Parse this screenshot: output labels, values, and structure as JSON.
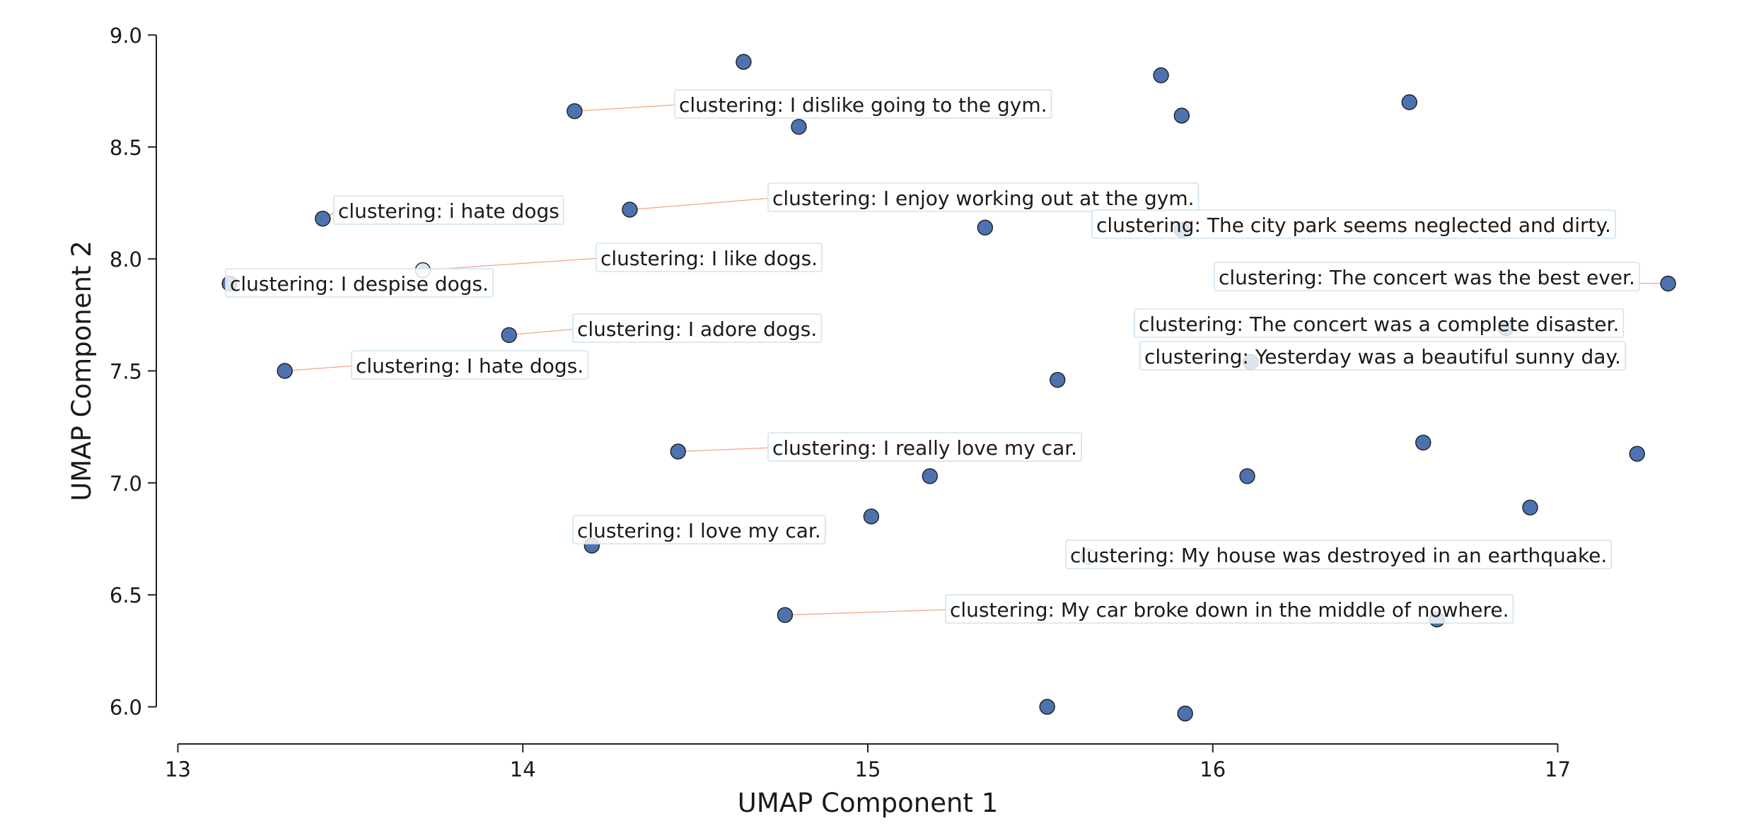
{
  "chart_data": {
    "type": "scatter",
    "title": "",
    "xlabel": "UMAP Component 1",
    "ylabel": "UMAP Component 2",
    "xlim": [
      13,
      17
    ],
    "ylim": [
      6.0,
      9.0
    ],
    "xticks": [
      13,
      14,
      15,
      16,
      17
    ],
    "yticks": [
      6.0,
      6.5,
      7.0,
      7.5,
      8.0,
      8.5,
      9.0
    ],
    "xtick_labels": [
      "13",
      "14",
      "15",
      "16",
      "17"
    ],
    "ytick_labels": [
      "6.0",
      "6.5",
      "7.0",
      "7.5",
      "8.0",
      "8.5",
      "9.0"
    ],
    "grid": false,
    "legend": "none",
    "colors": {
      "point_fill": "#4c72b0",
      "point_stroke": "#1f1f1f",
      "highlight_fill": "#dbe6f3",
      "label_border": "#cfe4f0",
      "leader_line": "#f4a582",
      "axis": "#222222",
      "text": "#1a1a1a"
    },
    "points": [
      {
        "x": 14.64,
        "y": 8.88
      },
      {
        "x": 15.85,
        "y": 8.82
      },
      {
        "x": 14.8,
        "y": 8.59
      },
      {
        "x": 15.91,
        "y": 8.64
      },
      {
        "x": 16.57,
        "y": 8.7
      },
      {
        "x": 15.34,
        "y": 8.14
      },
      {
        "x": 15.55,
        "y": 7.46
      },
      {
        "x": 16.61,
        "y": 7.18
      },
      {
        "x": 17.23,
        "y": 7.13
      },
      {
        "x": 15.18,
        "y": 7.03
      },
      {
        "x": 16.1,
        "y": 7.03
      },
      {
        "x": 15.01,
        "y": 6.85
      },
      {
        "x": 16.92,
        "y": 6.89
      },
      {
        "x": 15.52,
        "y": 6.0
      },
      {
        "x": 15.92,
        "y": 5.97
      }
    ],
    "annotations": [
      {
        "text": "clustering: I dislike going to the gym.",
        "x": 14.15,
        "y": 8.66
      },
      {
        "text": "clustering: i hate dogs",
        "x": 13.42,
        "y": 8.18
      },
      {
        "text": "clustering: I enjoy working out at the gym.",
        "x": 14.31,
        "y": 8.22
      },
      {
        "text": "clustering: The city park seems neglected and dirty.",
        "x": 15.91,
        "y": 8.13
      },
      {
        "text": "clustering: I like dogs.",
        "x": 13.71,
        "y": 7.95,
        "highlight": true
      },
      {
        "text": "clustering: I despise dogs.",
        "x": 13.15,
        "y": 7.89
      },
      {
        "text": "clustering: The concert was the best ever.",
        "x": 17.32,
        "y": 7.89
      },
      {
        "text": "clustering: The concert was a complete disaster.",
        "x": 16.85,
        "y": 7.69
      },
      {
        "text": "clustering: I adore dogs.",
        "x": 13.96,
        "y": 7.66
      },
      {
        "text": "clustering: Yesterday was a beautiful sunny day.",
        "x": 16.11,
        "y": 7.54
      },
      {
        "text": "clustering: I hate dogs.",
        "x": 13.31,
        "y": 7.5
      },
      {
        "text": "clustering: I really love my car.",
        "x": 14.45,
        "y": 7.14
      },
      {
        "text": "clustering: I love my car.",
        "x": 14.2,
        "y": 6.72
      },
      {
        "text": "clustering: My house was destroyed in an earthquake.",
        "x": 15.64,
        "y": 6.67,
        "highlight": true
      },
      {
        "text": "clustering: My car broke down in the middle of nowhere.",
        "x": 14.76,
        "y": 6.41
      },
      {
        "text": "",
        "x": 16.65,
        "y": 6.39
      }
    ]
  }
}
